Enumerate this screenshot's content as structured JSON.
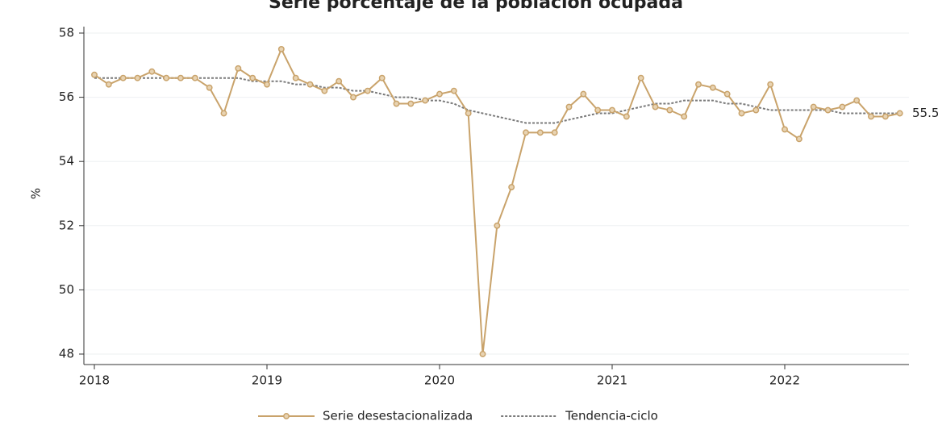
{
  "chart_data": {
    "type": "line",
    "title": "Serie porcentaje de la población ocupada",
    "y_label": "%",
    "categories": [
      "2018",
      null,
      null,
      null,
      null,
      null,
      null,
      null,
      null,
      null,
      null,
      null,
      "2019",
      null,
      null,
      null,
      null,
      null,
      null,
      null,
      null,
      null,
      null,
      null,
      "2020",
      null,
      null,
      null,
      null,
      null,
      null,
      null,
      null,
      null,
      null,
      null,
      "2021",
      null,
      null,
      null,
      null,
      null,
      null,
      null,
      null,
      null,
      null,
      null,
      "2022",
      null,
      null,
      null,
      null,
      null,
      null,
      null,
      null
    ],
    "series": [
      {
        "name": "Serie desestacionalizada",
        "color": "#c9a36b",
        "style": "solid",
        "markers": true,
        "values": [
          56.7,
          56.4,
          56.6,
          56.6,
          56.8,
          56.6,
          56.6,
          56.6,
          56.3,
          55.5,
          56.9,
          56.6,
          56.4,
          57.5,
          56.6,
          56.4,
          56.2,
          56.5,
          56.0,
          56.2,
          56.6,
          55.8,
          55.8,
          55.9,
          56.1,
          56.2,
          55.5,
          48.0,
          52.0,
          53.2,
          54.9,
          54.9,
          54.9,
          55.7,
          56.1,
          55.6,
          55.6,
          55.4,
          56.6,
          55.7,
          55.6,
          55.4,
          56.4,
          56.3,
          56.1,
          55.5,
          55.6,
          56.4,
          55.0,
          54.7,
          55.7,
          55.6,
          55.7,
          55.9,
          55.4,
          55.4,
          55.5
        ]
      },
      {
        "name": "Tendencia-ciclo",
        "color": "#7a7a7a",
        "style": "dotted",
        "markers": false,
        "values": [
          56.6,
          56.6,
          56.6,
          56.6,
          56.6,
          56.6,
          56.6,
          56.6,
          56.6,
          56.6,
          56.6,
          56.5,
          56.5,
          56.5,
          56.4,
          56.4,
          56.3,
          56.3,
          56.2,
          56.2,
          56.1,
          56.0,
          56.0,
          55.9,
          55.9,
          55.8,
          55.6,
          55.5,
          55.4,
          55.3,
          55.2,
          55.2,
          55.2,
          55.3,
          55.4,
          55.5,
          55.5,
          55.6,
          55.7,
          55.8,
          55.8,
          55.9,
          55.9,
          55.9,
          55.8,
          55.8,
          55.7,
          55.6,
          55.6,
          55.6,
          55.6,
          55.6,
          55.5,
          55.5,
          55.5,
          55.5,
          55.5
        ]
      }
    ],
    "ylim": [
      48,
      58
    ],
    "yticks": [
      48,
      50,
      52,
      54,
      56,
      58
    ],
    "grid": true,
    "legend": "bottom"
  }
}
